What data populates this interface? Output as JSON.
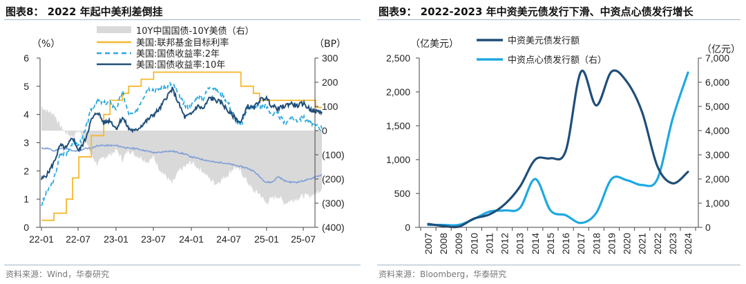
{
  "left": {
    "title": "图表8： 2022 年起中美利差倒挂",
    "source": "资料来源：Wind，华泰研究"
  },
  "right": {
    "title": "图表9： 2022-2023 年中资美元债发行下滑、中资点心债发行增长",
    "source": "资料来源：Bloomberg，华泰研究"
  },
  "chart_data": [
    {
      "type": "line",
      "title": "2022 年起中美利差倒挂",
      "ylabel": "(%)",
      "y2label": "(BP)",
      "ylim": [
        0,
        6
      ],
      "y2lim": [
        -400,
        300
      ],
      "yticks": [
        "0",
        "1",
        "2",
        "3",
        "4",
        "5",
        "6"
      ],
      "y2ticks": [
        "(400)",
        "(300)",
        "(200)",
        "(100)",
        "0",
        "100",
        "200",
        "300"
      ],
      "xticks": [
        "22-01",
        "22-07",
        "23-01",
        "23-07",
        "24-01",
        "24-07",
        "25-01",
        "25-07"
      ],
      "x": [
        "22-01",
        "22-02",
        "22-03",
        "22-04",
        "22-05",
        "22-06",
        "22-07",
        "22-08",
        "22-09",
        "22-10",
        "22-11",
        "22-12",
        "23-01",
        "23-02",
        "23-03",
        "23-04",
        "23-05",
        "23-06",
        "23-07",
        "23-08",
        "23-09",
        "23-10",
        "23-11",
        "23-12",
        "24-01",
        "24-02",
        "24-03",
        "24-04",
        "24-05",
        "24-06",
        "24-07",
        "24-08",
        "24-09",
        "24-10",
        "24-11",
        "24-12",
        "25-01",
        "25-02",
        "25-03",
        "25-04",
        "25-05",
        "25-06",
        "25-07",
        "25-08",
        "25-09",
        "25-10"
      ],
      "legend": [
        {
          "name": "10Y中国国债-10Y美债（右）",
          "style": "area",
          "color": "#d9d9d9"
        },
        {
          "name": "美国:联邦基金目标利率",
          "style": "step",
          "color": "#f5b82e"
        },
        {
          "name": "美国:国债收益率:2年",
          "style": "dashed",
          "color": "#29a8e0"
        },
        {
          "name": "美国:国债收益率:10年",
          "style": "solid",
          "color": "#1f4e79"
        }
      ],
      "series": [
        {
          "name": "10Y中国国债-10Y美债（右）",
          "axis": "right",
          "values": [
            100,
            80,
            70,
            20,
            -10,
            -25,
            0,
            -40,
            -100,
            -140,
            -110,
            -100,
            -80,
            -120,
            -80,
            -100,
            -110,
            -130,
            -110,
            -160,
            -190,
            -220,
            -170,
            -150,
            -130,
            -150,
            -170,
            -200,
            -220,
            -200,
            -180,
            -150,
            -170,
            -210,
            -250,
            -260,
            -300,
            -280,
            -270,
            -300,
            -290,
            -280,
            -270,
            -270,
            -260,
            -240
          ]
        },
        {
          "name": "美国:联邦基金目标利率",
          "axis": "left",
          "values": [
            0.25,
            0.25,
            0.5,
            0.5,
            1.0,
            1.75,
            2.5,
            2.5,
            3.25,
            3.25,
            4.0,
            4.5,
            4.5,
            4.75,
            5.0,
            5.0,
            5.25,
            5.25,
            5.5,
            5.5,
            5.5,
            5.5,
            5.5,
            5.5,
            5.5,
            5.5,
            5.5,
            5.5,
            5.5,
            5.5,
            5.5,
            5.5,
            5.0,
            5.0,
            4.75,
            4.5,
            4.5,
            4.5,
            4.5,
            4.5,
            4.5,
            4.5,
            4.5,
            4.5,
            4.25,
            4.25
          ]
        },
        {
          "name": "美国:国债收益率:2年",
          "axis": "left",
          "values": [
            0.8,
            1.3,
            1.7,
            2.6,
            2.6,
            3.0,
            2.9,
            3.4,
            4.2,
            4.5,
            4.4,
            4.4,
            4.2,
            4.8,
            4.0,
            4.0,
            4.5,
            4.9,
            4.9,
            4.9,
            5.0,
            5.1,
            4.7,
            4.3,
            4.3,
            4.6,
            4.6,
            5.0,
            4.9,
            4.7,
            4.4,
            3.9,
            3.6,
            4.2,
            4.3,
            4.3,
            4.3,
            4.0,
            4.0,
            3.7,
            3.9,
            3.8,
            3.9,
            3.7,
            3.6,
            3.5
          ]
        },
        {
          "name": "美国:国债收益率:10年",
          "axis": "left",
          "values": [
            1.7,
            1.9,
            2.3,
            2.9,
            2.8,
            3.2,
            2.7,
            3.1,
            3.8,
            4.1,
            3.7,
            3.8,
            3.5,
            3.9,
            3.5,
            3.4,
            3.6,
            3.8,
            4.0,
            4.2,
            4.6,
            4.9,
            4.4,
            3.9,
            4.0,
            4.3,
            4.2,
            4.6,
            4.5,
            4.4,
            4.1,
            3.9,
            3.7,
            4.3,
            4.2,
            4.5,
            4.6,
            4.3,
            4.2,
            4.3,
            4.4,
            4.3,
            4.4,
            4.2,
            4.1,
            4.1
          ]
        },
        {
          "name": "unlabeled (light blue)",
          "axis": "left",
          "color": "#7f9fd6",
          "values": [
            2.8,
            2.8,
            2.7,
            2.8,
            2.8,
            2.7,
            2.7,
            2.8,
            2.8,
            2.9,
            2.9,
            2.9,
            2.9,
            2.85,
            2.8,
            2.8,
            2.75,
            2.7,
            2.65,
            2.65,
            2.7,
            2.7,
            2.65,
            2.6,
            2.5,
            2.45,
            2.4,
            2.35,
            2.3,
            2.3,
            2.25,
            2.2,
            2.15,
            2.1,
            2.0,
            1.8,
            1.6,
            1.6,
            1.8,
            1.65,
            1.6,
            1.6,
            1.65,
            1.7,
            1.8,
            1.85
          ]
        }
      ]
    },
    {
      "type": "line",
      "title": "2022-2023 年中资美元债发行下滑、中资点心债发行增长",
      "ylabel": "(亿美元)",
      "y2label": "(亿元)",
      "ylim": [
        0,
        2500
      ],
      "y2lim": [
        0,
        7000
      ],
      "yticks": [
        "0",
        "500",
        "1,000",
        "1,500",
        "2,000",
        "2,500"
      ],
      "y2ticks": [
        "0",
        "1,000",
        "2,000",
        "3,000",
        "4,000",
        "5,000",
        "6,000",
        "7,000"
      ],
      "categories": [
        "2007",
        "2008",
        "2009",
        "2010",
        "2011",
        "2012",
        "2013",
        "2014",
        "2015",
        "2016",
        "2017",
        "2018",
        "2019",
        "2020",
        "2021",
        "2022",
        "2023",
        "2024"
      ],
      "legend": [
        {
          "name": "中资美元债发行额",
          "color": "#1f4e79"
        },
        {
          "name": "中资点心债发行额（右）",
          "color": "#1da8e2"
        }
      ],
      "series": [
        {
          "name": "中资美元债发行额",
          "axis": "left",
          "values": [
            50,
            20,
            10,
            130,
            190,
            340,
            600,
            1000,
            1020,
            1130,
            2300,
            1800,
            2300,
            2150,
            1700,
            900,
            650,
            820
          ]
        },
        {
          "name": "中资点心债发行额（右）",
          "axis": "right",
          "values": [
            100,
            100,
            100,
            350,
            650,
            700,
            800,
            2000,
            700,
            500,
            180,
            600,
            2000,
            1950,
            1750,
            2000,
            4500,
            6400
          ]
        }
      ]
    }
  ]
}
